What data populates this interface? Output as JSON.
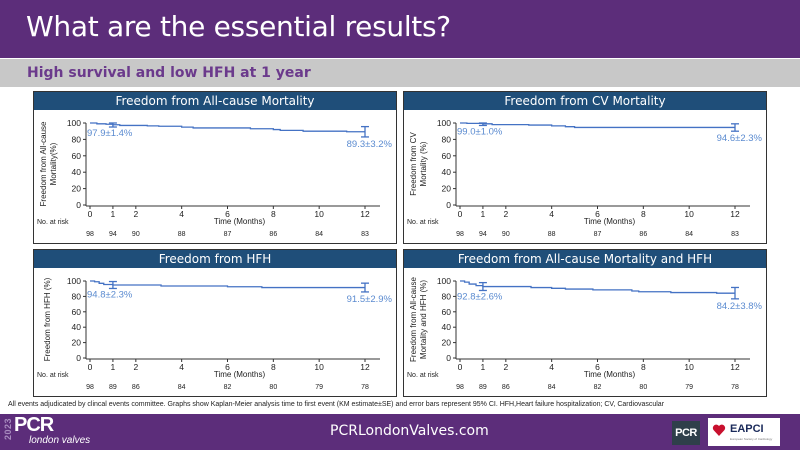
{
  "header": {
    "title": "What are the essential results?"
  },
  "subheader": {
    "text": "High survival and low HFH at 1 year"
  },
  "footnote": "All events adjudicated by clincal events committee. Graphs show Kaplan-Meier analysis time to first event (KM estimate±SE) and error bars represent 95% CI. HFH,Heart failure hospitalization; CV, Cardiovascular",
  "footer": {
    "url": "PCRLondonValves.com",
    "logo_year": "2023",
    "logo_pcr": "PCR",
    "logo_sub": "london valves",
    "badge_pcr": "PCR",
    "eapci": "EAPCI",
    "eapci_sub": "European Society of Cardiology"
  },
  "colors": {
    "header": "#5c2d7a",
    "panel_title": "#1f4e79",
    "curve": "#4472c4",
    "label": "#5b8bd0"
  },
  "chart_data": [
    {
      "type": "line",
      "title": "Freedom from All-cause Mortality",
      "ylabel": [
        "Freedom from All-cause",
        "Mortality(%)"
      ],
      "xlabel": "Time (Months)",
      "xlim": [
        0,
        12
      ],
      "ylim": [
        0,
        100
      ],
      "xticks": [
        0,
        1,
        2,
        4,
        6,
        8,
        10,
        12
      ],
      "yticks": [
        0,
        20,
        40,
        60,
        80,
        100
      ],
      "risk_label": "No. at risk",
      "at_risk": [
        98,
        94,
        90,
        88,
        87,
        86,
        84,
        83
      ],
      "curve": [
        [
          0,
          100
        ],
        [
          0.3,
          99
        ],
        [
          0.7,
          98.5
        ],
        [
          1,
          97.9
        ],
        [
          1.3,
          97
        ],
        [
          2.5,
          96.5
        ],
        [
          3,
          96
        ],
        [
          4,
          95
        ],
        [
          4.5,
          94
        ],
        [
          6,
          94
        ],
        [
          7,
          93
        ],
        [
          8,
          92
        ],
        [
          8.3,
          91
        ],
        [
          9.3,
          90
        ],
        [
          11.2,
          89.3
        ],
        [
          12,
          89.3
        ]
      ],
      "error_bars": [
        {
          "x": 1,
          "y": 97.9,
          "lo": 95.1,
          "hi": 100
        },
        {
          "x": 12,
          "y": 89.3,
          "lo": 83,
          "hi": 95.6
        }
      ],
      "annotations": [
        {
          "x": 1,
          "text": "97.9±1.4%"
        },
        {
          "x": 12,
          "text": "89.3±3.2%"
        }
      ]
    },
    {
      "type": "line",
      "title": "Freedom from CV Mortality",
      "ylabel": [
        "Freedom from CV",
        "Mortality (%)"
      ],
      "xlabel": "Time (Months)",
      "xlim": [
        0,
        12
      ],
      "ylim": [
        0,
        100
      ],
      "xticks": [
        0,
        1,
        2,
        4,
        6,
        8,
        10,
        12
      ],
      "yticks": [
        0,
        20,
        40,
        60,
        80,
        100
      ],
      "risk_label": "No. at risk",
      "at_risk": [
        98,
        94,
        90,
        88,
        87,
        86,
        84,
        83
      ],
      "curve": [
        [
          0,
          100
        ],
        [
          0.3,
          99.5
        ],
        [
          1,
          99
        ],
        [
          1.4,
          98
        ],
        [
          3,
          97.5
        ],
        [
          4,
          96.5
        ],
        [
          4.6,
          95.5
        ],
        [
          5,
          94.6
        ],
        [
          12,
          94.6
        ]
      ],
      "error_bars": [
        {
          "x": 1,
          "y": 99.0,
          "lo": 97,
          "hi": 100
        },
        {
          "x": 12,
          "y": 94.6,
          "lo": 90,
          "hi": 99
        }
      ],
      "annotations": [
        {
          "x": 1,
          "text": "99.0±1.0%"
        },
        {
          "x": 12,
          "text": "94.6±2.3%"
        }
      ]
    },
    {
      "type": "line",
      "title": "Freedom from HFH",
      "ylabel": [
        "Freedom from HFH (%)"
      ],
      "xlabel": "Time (Months)",
      "xlim": [
        0,
        12
      ],
      "ylim": [
        0,
        100
      ],
      "xticks": [
        0,
        1,
        2,
        4,
        6,
        8,
        10,
        12
      ],
      "yticks": [
        0,
        20,
        40,
        60,
        80,
        100
      ],
      "risk_label": "No. at risk",
      "at_risk": [
        98,
        89,
        86,
        84,
        82,
        80,
        79,
        78
      ],
      "curve": [
        [
          0,
          100
        ],
        [
          0.2,
          99
        ],
        [
          0.4,
          97
        ],
        [
          0.6,
          95.5
        ],
        [
          1,
          94.8
        ],
        [
          3,
          94.8
        ],
        [
          3.1,
          93.5
        ],
        [
          5.8,
          93.5
        ],
        [
          6,
          92.5
        ],
        [
          7.4,
          92.5
        ],
        [
          7.5,
          91.5
        ],
        [
          12,
          91.5
        ]
      ],
      "error_bars": [
        {
          "x": 1,
          "y": 94.8,
          "lo": 90.3,
          "hi": 99.3
        },
        {
          "x": 12,
          "y": 91.5,
          "lo": 85.8,
          "hi": 97.2
        }
      ],
      "annotations": [
        {
          "x": 1,
          "text": "94.8±2.3%"
        },
        {
          "x": 12,
          "text": "91.5±2.9%"
        }
      ]
    },
    {
      "type": "line",
      "title": "Freedom from All-cause Mortality and HFH",
      "ylabel": [
        "Freedom from All-cause",
        "Mortality and HFH (%)"
      ],
      "xlabel": "Time (Months)",
      "xlim": [
        0,
        12
      ],
      "ylim": [
        0,
        100
      ],
      "xticks": [
        0,
        1,
        2,
        4,
        6,
        8,
        10,
        12
      ],
      "yticks": [
        0,
        20,
        40,
        60,
        80,
        100
      ],
      "risk_label": "No. at risk",
      "at_risk": [
        98,
        89,
        86,
        84,
        82,
        80,
        79,
        78
      ],
      "curve": [
        [
          0,
          100
        ],
        [
          0.2,
          98.5
        ],
        [
          0.4,
          96
        ],
        [
          0.7,
          94
        ],
        [
          1,
          92.8
        ],
        [
          3,
          92.8
        ],
        [
          3.1,
          91.5
        ],
        [
          4,
          90.5
        ],
        [
          4.6,
          89.5
        ],
        [
          5.8,
          88.5
        ],
        [
          7.5,
          87
        ],
        [
          7.8,
          86
        ],
        [
          9.2,
          85
        ],
        [
          11.2,
          84.2
        ],
        [
          12,
          84.2
        ]
      ],
      "error_bars": [
        {
          "x": 1,
          "y": 92.8,
          "lo": 87.7,
          "hi": 97.9
        },
        {
          "x": 12,
          "y": 84.2,
          "lo": 76.8,
          "hi": 91.6
        }
      ],
      "annotations": [
        {
          "x": 1,
          "text": "92.8±2.6%"
        },
        {
          "x": 12,
          "text": "84.2±3.8%"
        }
      ]
    }
  ]
}
